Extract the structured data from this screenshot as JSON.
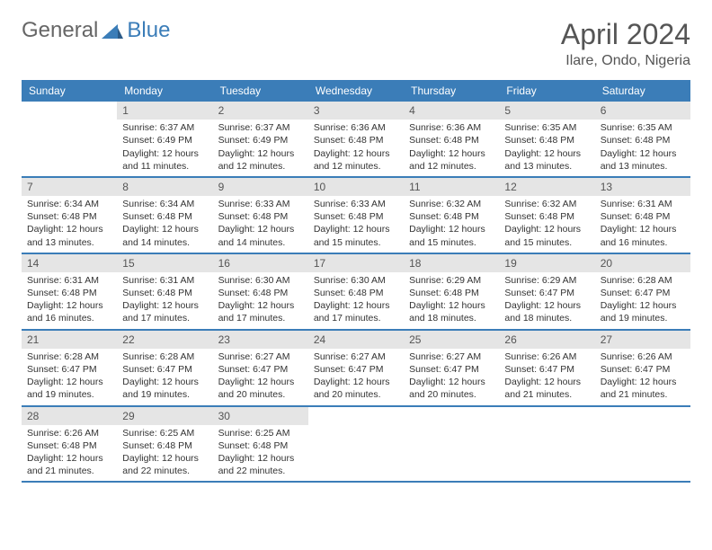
{
  "logo": {
    "part1": "General",
    "part2": "Blue"
  },
  "title": "April 2024",
  "location": "Ilare, Ondo, Nigeria",
  "colors": {
    "header_bg": "#3b7db8",
    "header_text": "#ffffff",
    "daynum_bg": "#e5e5e5",
    "border": "#3b7db8",
    "text": "#333333",
    "title_text": "#555555"
  },
  "layout": {
    "columns": 7,
    "first_day_column": 1
  },
  "day_names": [
    "Sunday",
    "Monday",
    "Tuesday",
    "Wednesday",
    "Thursday",
    "Friday",
    "Saturday"
  ],
  "days": [
    {
      "n": 1,
      "sunrise": "6:37 AM",
      "sunset": "6:49 PM",
      "daylight": "12 hours and 11 minutes."
    },
    {
      "n": 2,
      "sunrise": "6:37 AM",
      "sunset": "6:49 PM",
      "daylight": "12 hours and 12 minutes."
    },
    {
      "n": 3,
      "sunrise": "6:36 AM",
      "sunset": "6:48 PM",
      "daylight": "12 hours and 12 minutes."
    },
    {
      "n": 4,
      "sunrise": "6:36 AM",
      "sunset": "6:48 PM",
      "daylight": "12 hours and 12 minutes."
    },
    {
      "n": 5,
      "sunrise": "6:35 AM",
      "sunset": "6:48 PM",
      "daylight": "12 hours and 13 minutes."
    },
    {
      "n": 6,
      "sunrise": "6:35 AM",
      "sunset": "6:48 PM",
      "daylight": "12 hours and 13 minutes."
    },
    {
      "n": 7,
      "sunrise": "6:34 AM",
      "sunset": "6:48 PM",
      "daylight": "12 hours and 13 minutes."
    },
    {
      "n": 8,
      "sunrise": "6:34 AM",
      "sunset": "6:48 PM",
      "daylight": "12 hours and 14 minutes."
    },
    {
      "n": 9,
      "sunrise": "6:33 AM",
      "sunset": "6:48 PM",
      "daylight": "12 hours and 14 minutes."
    },
    {
      "n": 10,
      "sunrise": "6:33 AM",
      "sunset": "6:48 PM",
      "daylight": "12 hours and 15 minutes."
    },
    {
      "n": 11,
      "sunrise": "6:32 AM",
      "sunset": "6:48 PM",
      "daylight": "12 hours and 15 minutes."
    },
    {
      "n": 12,
      "sunrise": "6:32 AM",
      "sunset": "6:48 PM",
      "daylight": "12 hours and 15 minutes."
    },
    {
      "n": 13,
      "sunrise": "6:31 AM",
      "sunset": "6:48 PM",
      "daylight": "12 hours and 16 minutes."
    },
    {
      "n": 14,
      "sunrise": "6:31 AM",
      "sunset": "6:48 PM",
      "daylight": "12 hours and 16 minutes."
    },
    {
      "n": 15,
      "sunrise": "6:31 AM",
      "sunset": "6:48 PM",
      "daylight": "12 hours and 17 minutes."
    },
    {
      "n": 16,
      "sunrise": "6:30 AM",
      "sunset": "6:48 PM",
      "daylight": "12 hours and 17 minutes."
    },
    {
      "n": 17,
      "sunrise": "6:30 AM",
      "sunset": "6:48 PM",
      "daylight": "12 hours and 17 minutes."
    },
    {
      "n": 18,
      "sunrise": "6:29 AM",
      "sunset": "6:48 PM",
      "daylight": "12 hours and 18 minutes."
    },
    {
      "n": 19,
      "sunrise": "6:29 AM",
      "sunset": "6:47 PM",
      "daylight": "12 hours and 18 minutes."
    },
    {
      "n": 20,
      "sunrise": "6:28 AM",
      "sunset": "6:47 PM",
      "daylight": "12 hours and 19 minutes."
    },
    {
      "n": 21,
      "sunrise": "6:28 AM",
      "sunset": "6:47 PM",
      "daylight": "12 hours and 19 minutes."
    },
    {
      "n": 22,
      "sunrise": "6:28 AM",
      "sunset": "6:47 PM",
      "daylight": "12 hours and 19 minutes."
    },
    {
      "n": 23,
      "sunrise": "6:27 AM",
      "sunset": "6:47 PM",
      "daylight": "12 hours and 20 minutes."
    },
    {
      "n": 24,
      "sunrise": "6:27 AM",
      "sunset": "6:47 PM",
      "daylight": "12 hours and 20 minutes."
    },
    {
      "n": 25,
      "sunrise": "6:27 AM",
      "sunset": "6:47 PM",
      "daylight": "12 hours and 20 minutes."
    },
    {
      "n": 26,
      "sunrise": "6:26 AM",
      "sunset": "6:47 PM",
      "daylight": "12 hours and 21 minutes."
    },
    {
      "n": 27,
      "sunrise": "6:26 AM",
      "sunset": "6:47 PM",
      "daylight": "12 hours and 21 minutes."
    },
    {
      "n": 28,
      "sunrise": "6:26 AM",
      "sunset": "6:48 PM",
      "daylight": "12 hours and 21 minutes."
    },
    {
      "n": 29,
      "sunrise": "6:25 AM",
      "sunset": "6:48 PM",
      "daylight": "12 hours and 22 minutes."
    },
    {
      "n": 30,
      "sunrise": "6:25 AM",
      "sunset": "6:48 PM",
      "daylight": "12 hours and 22 minutes."
    }
  ],
  "labels": {
    "sunrise": "Sunrise:",
    "sunset": "Sunset:",
    "daylight": "Daylight:"
  }
}
